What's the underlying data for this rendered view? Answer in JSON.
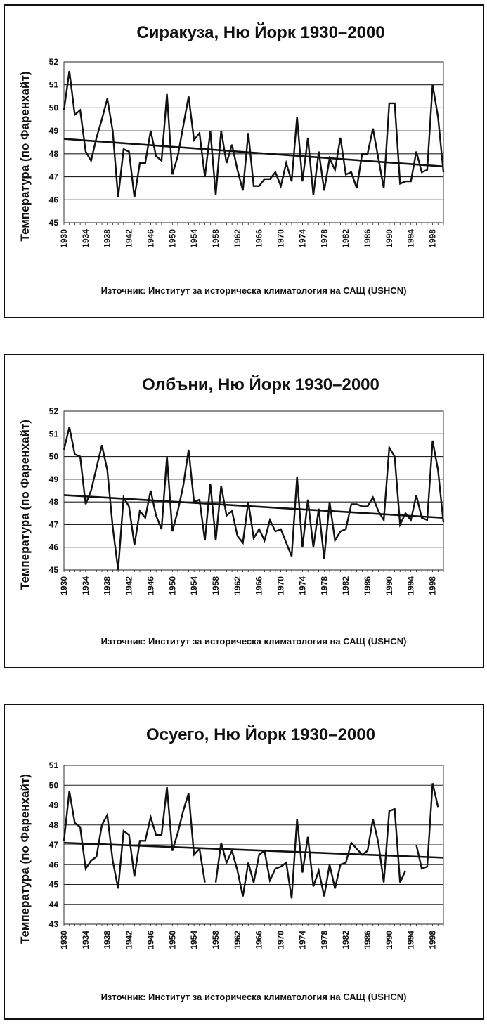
{
  "chart_data": [
    {
      "type": "line",
      "title": "Сиракуза, Ню Йорк 1930–2000",
      "ylabel": "Температура (по Фаренхайт)",
      "xlabel": "",
      "source": "Източник: Институт за историческа климатология на САЩ (USHCN)",
      "ylim": [
        45,
        52
      ],
      "yticks": [
        45,
        46,
        47,
        48,
        49,
        50,
        51,
        52
      ],
      "xticks": [
        1930,
        1934,
        1938,
        1942,
        1946,
        1950,
        1954,
        1958,
        1962,
        1966,
        1970,
        1974,
        1978,
        1982,
        1986,
        1990,
        1994,
        1998
      ],
      "grid": true,
      "series": [
        {
          "x_start": 1930,
          "values": [
            49.9,
            51.6,
            49.7,
            49.9,
            48.1,
            47.7,
            48.7,
            49.5,
            50.4,
            49.0,
            46.1,
            48.2,
            48.1,
            46.1,
            47.6,
            47.6,
            49.0,
            47.9,
            47.7,
            50.6,
            47.1,
            47.9,
            49.2,
            50.5,
            48.6,
            48.9,
            47.0,
            49.0,
            46.2,
            49.0,
            47.6,
            48.4,
            47.3,
            46.4,
            48.9,
            46.6,
            46.6,
            46.9,
            46.9,
            47.2,
            46.6,
            47.6,
            46.8,
            49.6,
            46.8,
            48.7,
            46.2,
            48.1,
            46.4,
            47.8,
            47.3,
            48.7,
            47.1,
            47.2,
            46.5,
            48.0,
            48.0,
            49.1,
            47.8,
            46.5,
            50.2,
            50.2,
            46.7,
            46.8,
            46.8,
            48.1,
            47.2,
            47.3,
            51.0,
            49.6,
            47.2
          ]
        },
        {
          "name_hidden": "trend",
          "trend": [
            48.65,
            47.45
          ]
        }
      ]
    },
    {
      "type": "line",
      "title": "Олбъни, Ню Йорк 1930–2000",
      "ylabel": "Температура (по Фаренхайт)",
      "xlabel": "",
      "source": "Източник: Институт за историческа климатология на САЩ (USHCN)",
      "ylim": [
        45,
        52
      ],
      "yticks": [
        45,
        46,
        47,
        48,
        49,
        50,
        51,
        52
      ],
      "xticks": [
        1930,
        1934,
        1938,
        1942,
        1946,
        1950,
        1954,
        1958,
        1962,
        1966,
        1970,
        1974,
        1978,
        1982,
        1986,
        1990,
        1994,
        1998
      ],
      "grid": true,
      "series": [
        {
          "x_start": 1930,
          "values": [
            50.3,
            51.3,
            50.1,
            50.0,
            47.9,
            48.5,
            49.5,
            50.5,
            49.4,
            46.9,
            45.0,
            48.2,
            47.8,
            46.1,
            47.6,
            47.3,
            48.5,
            47.4,
            46.8,
            50.0,
            46.7,
            47.6,
            48.7,
            50.3,
            48.0,
            48.1,
            46.3,
            48.8,
            46.3,
            48.7,
            47.4,
            47.6,
            46.5,
            46.2,
            48.0,
            46.4,
            46.8,
            46.3,
            47.2,
            46.7,
            46.8,
            46.2,
            45.6,
            49.1,
            46.0,
            48.1,
            46.0,
            47.7,
            45.5,
            48.0,
            46.3,
            46.7,
            46.8,
            47.9,
            47.9,
            47.8,
            47.8,
            48.2,
            47.6,
            47.2,
            50.4,
            50.0,
            47.0,
            47.5,
            47.2,
            48.3,
            47.3,
            47.2,
            50.7,
            49.4,
            47.1
          ]
        },
        {
          "name_hidden": "trend",
          "trend": [
            48.3,
            47.3
          ]
        }
      ]
    },
    {
      "type": "line",
      "title": "Осуего, Ню Йорк 1930–2000",
      "ylabel": "Температура (по Фаренхайт)",
      "xlabel": "",
      "source": "Източник: Институт за историческа климатология на САЩ (USHCN)",
      "ylim": [
        43,
        51
      ],
      "yticks": [
        43,
        44,
        45,
        46,
        47,
        48,
        49,
        50,
        51
      ],
      "xticks": [
        1930,
        1934,
        1938,
        1942,
        1946,
        1950,
        1954,
        1958,
        1962,
        1966,
        1970,
        1974,
        1978,
        1982,
        1986,
        1990,
        1994,
        1998
      ],
      "grid": true,
      "series": [
        {
          "x_start": 1930,
          "values": [
            47.2,
            49.7,
            48.1,
            47.9,
            45.8,
            46.2,
            46.4,
            48.0,
            48.5,
            46.2,
            44.8,
            47.7,
            47.5,
            45.4,
            47.2,
            47.2,
            48.4,
            47.5,
            47.5,
            49.9,
            46.7,
            47.6,
            48.7,
            49.6,
            46.5,
            46.8,
            45.1,
            null,
            45.1,
            47.1,
            46.1,
            46.7,
            45.7,
            44.4,
            46.1,
            45.1,
            46.5,
            46.7,
            45.2,
            45.8,
            45.9,
            46.1,
            44.3,
            48.3,
            45.6,
            47.4,
            44.9,
            45.7,
            44.4,
            46.0,
            44.8,
            46.0,
            46.1,
            47.1,
            46.8,
            46.5,
            46.7,
            48.3,
            47.1,
            45.1,
            48.7,
            48.8,
            45.1,
            45.7,
            null,
            47.0,
            45.8,
            45.9,
            50.1,
            48.9,
            null
          ]
        },
        {
          "name_hidden": "trend",
          "trend": [
            47.1,
            46.35
          ]
        }
      ]
    }
  ]
}
